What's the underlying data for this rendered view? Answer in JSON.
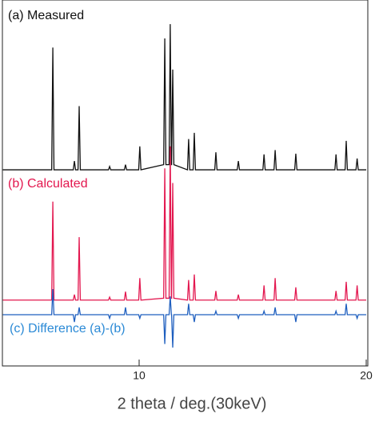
{
  "chart_data": {
    "type": "line",
    "xlabel": "2 theta / deg.(30keV)",
    "xlim": [
      4,
      20
    ],
    "xticks": [
      10,
      20
    ],
    "ylim": [
      0,
      100
    ],
    "x": [
      4,
      6.15,
      6.2,
      6.25,
      7.1,
      7.15,
      7.2,
      7.31,
      7.36,
      7.41,
      8.65,
      8.7,
      8.75,
      9.35,
      9.4,
      9.45,
      9.98,
      10.03,
      10.08,
      11.08,
      11.13,
      11.18,
      11.32,
      11.37,
      11.42,
      11.43,
      11.48,
      11.53,
      12.13,
      12.18,
      12.23,
      12.38,
      12.43,
      12.48,
      13.33,
      13.38,
      13.43,
      14.32,
      14.37,
      14.42,
      15.45,
      15.5,
      15.55,
      15.94,
      15.99,
      16.04,
      16.85,
      16.9,
      16.95,
      18.62,
      18.67,
      18.72,
      19.07,
      19.12,
      19.17,
      19.55,
      19.6,
      19.65,
      20
    ],
    "series": [
      {
        "name": "(a) Measured",
        "color": "#111111",
        "values": [
          53.6,
          53.6,
          87,
          53.6,
          53.6,
          56,
          53.6,
          53.6,
          71,
          53.6,
          53.6,
          54.5,
          53.6,
          53.6,
          55,
          53.6,
          53.6,
          60,
          53.6,
          55,
          89.5,
          55,
          55,
          93.4,
          55,
          55,
          81,
          55,
          53.6,
          62,
          53.6,
          53.6,
          63.7,
          53.6,
          53.6,
          58.4,
          53.6,
          53.6,
          56,
          53.6,
          53.6,
          57.8,
          53.6,
          53.6,
          59,
          53.6,
          53.6,
          58,
          53.6,
          53.6,
          57.8,
          53.6,
          53.6,
          61.5,
          53.6,
          53.6,
          56.7,
          53.6,
          53.6
        ]
      },
      {
        "name": "(b) Calculated",
        "color": "#e3174f",
        "values": [
          18,
          18,
          44.9,
          18,
          18,
          19.5,
          18,
          18,
          35.2,
          18,
          18,
          18.8,
          18,
          18,
          20.3,
          18,
          18,
          24,
          18,
          18.5,
          54,
          18.5,
          18.5,
          60,
          18.5,
          18.5,
          50,
          18.5,
          18,
          23.5,
          18,
          18,
          25,
          18,
          18,
          20.5,
          18,
          18,
          19.5,
          18,
          18,
          22,
          18,
          18,
          24,
          18,
          18,
          21.5,
          18,
          18,
          20.5,
          18,
          18,
          23,
          18,
          18,
          22,
          18,
          18
        ]
      },
      {
        "name": "(c) Difference (a)-(b)",
        "color": "#1f5fbf",
        "values": [
          14,
          14,
          21,
          14,
          14,
          12,
          14,
          14,
          16,
          14,
          14,
          13,
          14,
          14,
          16,
          14,
          14,
          13,
          14,
          14,
          6,
          14,
          14,
          19,
          14,
          14,
          5,
          14,
          14,
          17,
          14,
          14,
          12,
          14,
          14,
          15,
          14,
          14,
          13,
          14,
          14,
          15,
          14,
          14,
          16,
          14,
          14,
          12,
          14,
          14,
          15,
          14,
          14,
          17,
          14,
          14,
          13,
          14,
          14
        ]
      }
    ]
  }
}
